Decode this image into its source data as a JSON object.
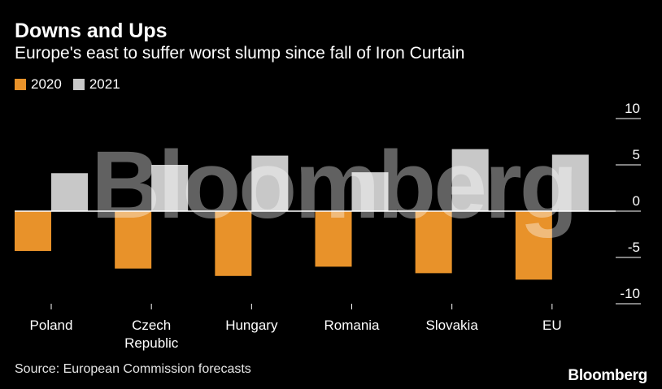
{
  "header": {
    "title": "Downs and Ups",
    "subtitle": "Europe's east to suffer worst slump since fall of Iron Curtain"
  },
  "legend": [
    {
      "label": "2020",
      "color": "#e8922a"
    },
    {
      "label": "2021",
      "color": "#c8c8c8"
    }
  ],
  "chart_data": {
    "type": "bar",
    "title": "Downs and Ups",
    "subtitle": "Europe's east to suffer worst slump since fall of Iron Curtain",
    "categories": [
      "Poland",
      "Czech\nRepublic",
      "Hungary",
      "Romania",
      "Slovakia",
      "EU"
    ],
    "series": [
      {
        "name": "2020",
        "color": "#e8922a",
        "values": [
          -4.3,
          -6.2,
          -7.0,
          -6.0,
          -6.7,
          -7.4
        ]
      },
      {
        "name": "2021",
        "color": "#c8c8c8",
        "values": [
          4.1,
          5.0,
          6.0,
          4.2,
          6.7,
          6.1
        ]
      }
    ],
    "yticks": [
      10,
      5,
      0,
      -5,
      -10
    ],
    "ylim": [
      -10,
      10
    ],
    "xlabel": "",
    "ylabel": "",
    "grid": false,
    "legend_position": "top-left"
  },
  "footer": {
    "source": "Source: European Commission forecasts",
    "brand": "Bloomberg"
  },
  "watermark": "Bloomberg"
}
